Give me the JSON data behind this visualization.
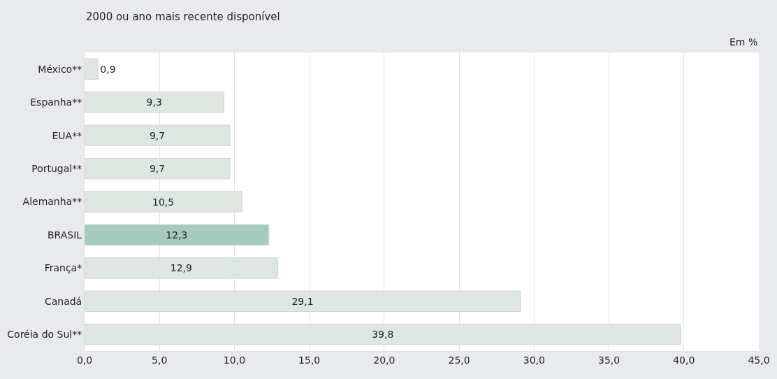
{
  "chart_data": {
    "type": "bar",
    "orientation": "horizontal",
    "subtitle": "2000 ou ano mais recente disponível",
    "annotations": [
      "Em %"
    ],
    "categories": [
      "México**",
      "Espanha**",
      "EUA**",
      "Portugal**",
      "Alemanha**",
      "BRASIL",
      "França*",
      "Canadá",
      "Coréia do Sul**"
    ],
    "values": [
      0.9,
      9.3,
      9.7,
      9.7,
      10.5,
      12.3,
      12.9,
      29.1,
      39.8
    ],
    "value_labels": [
      "0,9",
      "9,3",
      "9,7",
      "9,7",
      "10,5",
      "12,3",
      "12,9",
      "29,1",
      "39,8"
    ],
    "colors": [
      "#dde6e1",
      "#dde6e1",
      "#dde6e1",
      "#dde6e1",
      "#dde6e1",
      "#a5cbbd",
      "#dde6e1",
      "#dde6e1",
      "#dde6e1"
    ],
    "xlim": [
      0,
      45
    ],
    "xticks": [
      {
        "value": 0,
        "label": "0,0"
      },
      {
        "value": 5,
        "label": "5,0"
      },
      {
        "value": 10,
        "label": "10,0"
      },
      {
        "value": 15,
        "label": "15,0"
      },
      {
        "value": 20,
        "label": "20,0"
      },
      {
        "value": 25,
        "label": "25,0"
      },
      {
        "value": 30,
        "label": "30,0"
      },
      {
        "value": 35,
        "label": "35,0"
      },
      {
        "value": 40,
        "label": "40,0"
      },
      {
        "value": 45,
        "label": "45,0"
      }
    ],
    "grid": "x",
    "legend": false
  }
}
